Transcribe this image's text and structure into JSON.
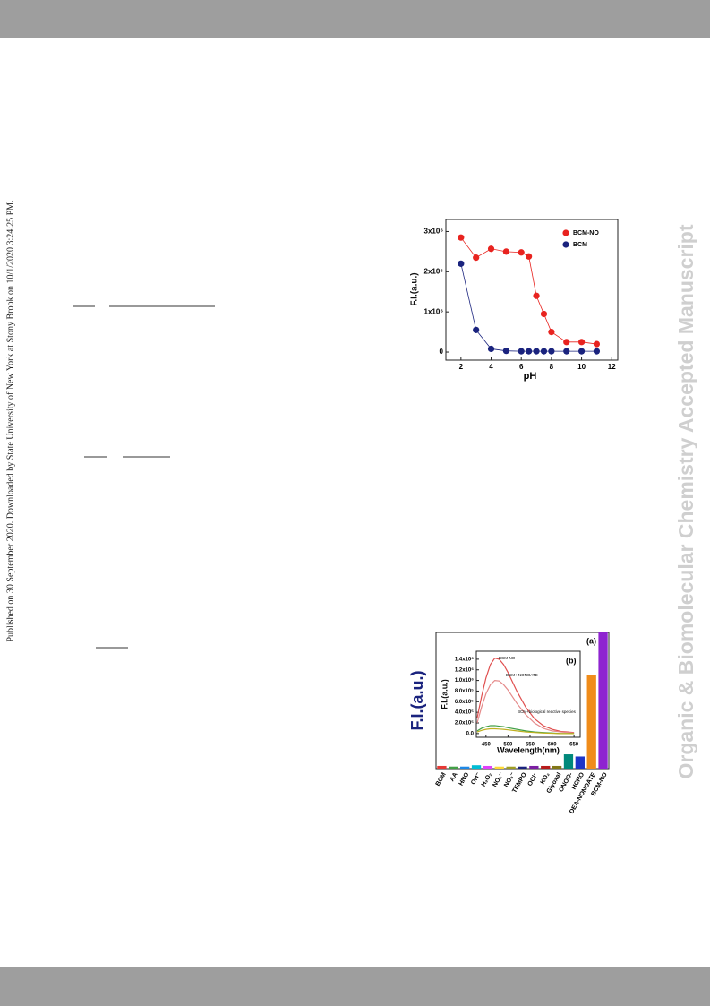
{
  "side_note": "Published on 30 September 2020. Downloaded by State University of New York at Stony Brook on 10/1/2020 3:24:25 PM.",
  "watermark": "Organic & Biomolecular Chemistry Accepted Manuscript",
  "chart_data": [
    {
      "type": "line",
      "x_label": "pH",
      "y_label": "F.I.(a.u.)",
      "x": [
        2,
        3,
        4,
        5,
        6,
        6.5,
        7,
        7.5,
        8,
        9,
        10,
        11
      ],
      "series": [
        {
          "name": "BCM-NO",
          "color": "#e8231f",
          "values": [
            2850000,
            2350000,
            2570000,
            2500000,
            2480000,
            2380000,
            1400000,
            950000,
            500000,
            250000,
            250000,
            200000
          ]
        },
        {
          "name": "BCM",
          "color": "#1a237e",
          "values": [
            2200000,
            550000,
            80000,
            30000,
            20000,
            20000,
            20000,
            20000,
            20000,
            20000,
            20000,
            20000
          ]
        }
      ],
      "xlim": [
        1,
        12.4
      ],
      "ylim": [
        -200000,
        3300000
      ],
      "xticks": [
        2,
        4,
        6,
        8,
        10,
        12
      ],
      "yticks": [
        0,
        {
          "value": 1000000,
          "label": "1x10⁶"
        },
        {
          "value": 2000000,
          "label": "2x10⁶"
        },
        {
          "value": 3000000,
          "label": "3x10⁶"
        }
      ],
      "legend": "top-right"
    },
    {
      "type": "bar",
      "y_label": "F.I.(a.u.)",
      "panel_label": "(a)",
      "categories": [
        "BCM",
        "AA",
        "HNO",
        "OH⁻",
        "H₂O₂",
        "NO₂⁻",
        "NO₃⁻",
        "TEMPO",
        "OCl⁻",
        "KO₂",
        "Glyoxal",
        "ONOO-",
        "HCHO",
        "DEA-NONOATE",
        "BCM-NO"
      ],
      "values": [
        2,
        1.5,
        1.5,
        2.5,
        2,
        1.5,
        1.5,
        1.5,
        2,
        2,
        2,
        10.5,
        8.9,
        69,
        100
      ],
      "colors": [
        "#e53935",
        "#43a047",
        "#1e88e5",
        "#00bcd4",
        "#e040fb",
        "#fdd835",
        "#9e9d24",
        "#1a237e",
        "#7b1fa2",
        "#b71c1c",
        "#827717",
        "#00897b",
        "#1e35c8",
        "#f08c1a",
        "#8e24d0"
      ],
      "ylim": [
        0,
        100
      ]
    },
    {
      "type": "line",
      "x_label": "Wavelength(nm)",
      "y_label": "F.I.(a.u.)",
      "panel_label": "(b)",
      "x": [
        430,
        440,
        450,
        460,
        470,
        480,
        490,
        500,
        520,
        540,
        560,
        580,
        600,
        620,
        650
      ],
      "series": [
        {
          "color": "#e05050",
          "values": [
            300000,
            700000,
            1050000,
            1300000,
            1420000,
            1400000,
            1300000,
            1150000,
            800000,
            500000,
            280000,
            150000,
            80000,
            40000,
            20000
          ]
        },
        {
          "color": "#e58a8a",
          "values": [
            200000,
            500000,
            750000,
            920000,
            1000000,
            990000,
            920000,
            820000,
            570000,
            360000,
            200000,
            100000,
            50000,
            30000,
            10000
          ]
        },
        {
          "color": "#43a047",
          "values": [
            50000,
            100000,
            130000,
            150000,
            150000,
            140000,
            130000,
            110000,
            80000,
            50000,
            30000,
            20000,
            10000,
            0,
            0
          ]
        },
        {
          "color": "#c0b020",
          "values": [
            30000,
            60000,
            80000,
            90000,
            90000,
            85000,
            80000,
            70000,
            50000,
            30000,
            20000,
            10000,
            5000,
            0,
            0
          ]
        }
      ],
      "annotations": [
        "BCM-NO",
        "BCM+ NONOATE",
        "BCM+biological reactive species"
      ],
      "xlim": [
        428,
        664
      ],
      "ylim": [
        -70000,
        1550000
      ],
      "xticks": [
        450,
        500,
        550,
        600,
        650
      ],
      "yticks": [
        {
          "value": 0,
          "label": "0.0"
        },
        {
          "value": 200000,
          "label": "2.0x10⁵"
        },
        {
          "value": 400000,
          "label": "4.0x10⁵"
        },
        {
          "value": 600000,
          "label": "6.0x10⁵"
        },
        {
          "value": 800000,
          "label": "8.0x10⁵"
        },
        {
          "value": 1000000,
          "label": "1.0x10⁶"
        },
        {
          "value": 1200000,
          "label": "1.2x10⁶"
        },
        {
          "value": 1400000,
          "label": "1.4x10⁶"
        }
      ]
    }
  ]
}
